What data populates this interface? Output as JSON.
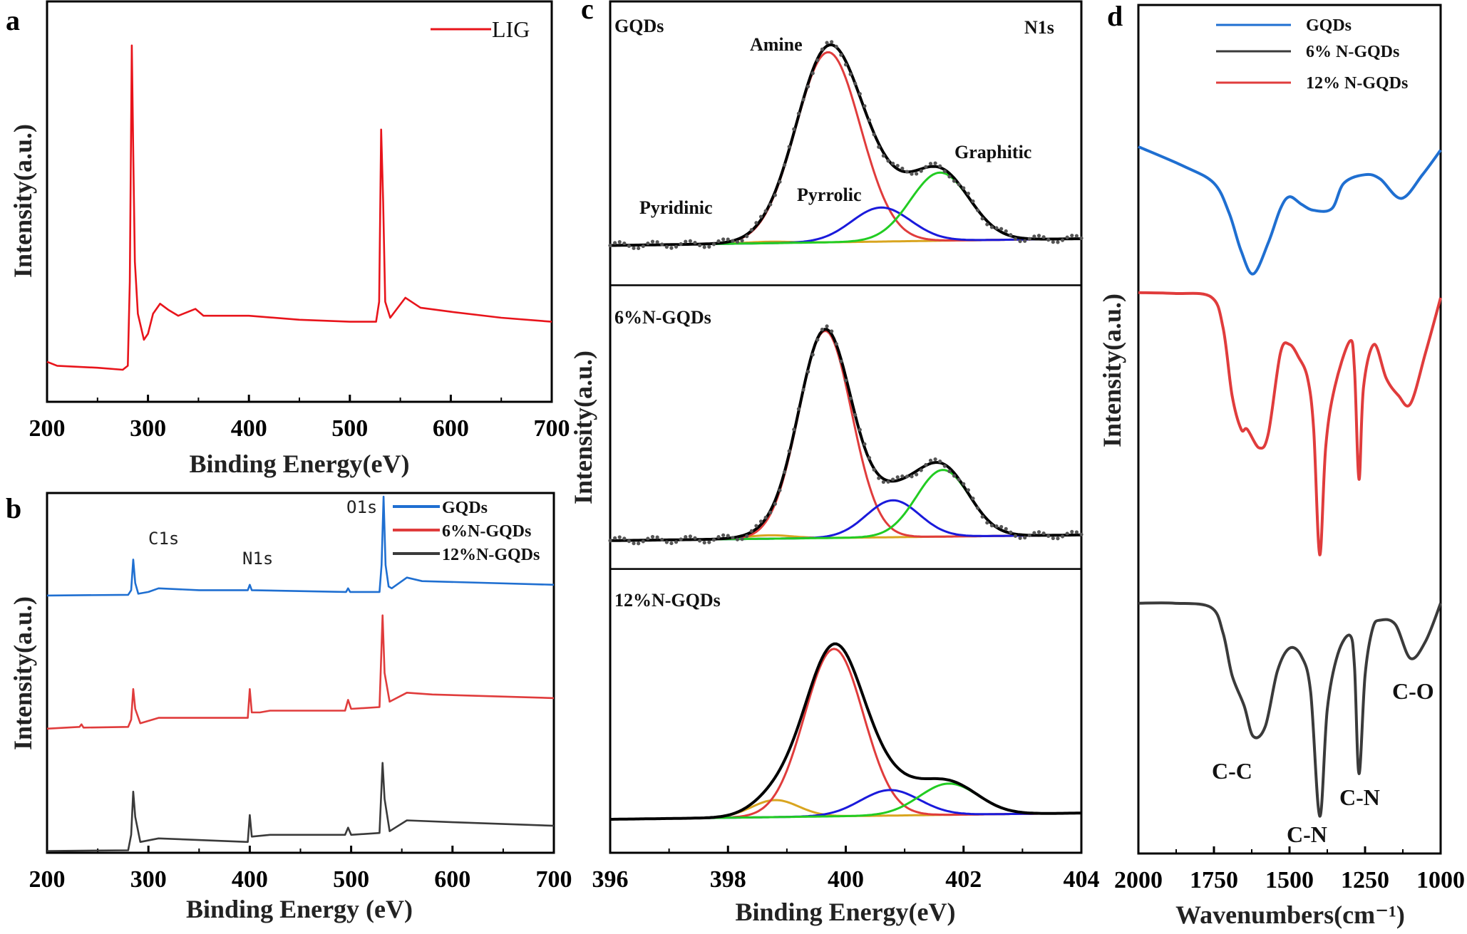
{
  "chart_data": [
    {
      "panel": "a",
      "type": "line",
      "xlabel": "Binding Energy(eV)",
      "ylabel": "Intensity(a.u.)",
      "xlim": [
        200,
        700
      ],
      "xticks": [
        200,
        300,
        400,
        500,
        600,
        700
      ],
      "legend_position": "top-right",
      "series": [
        {
          "name": "LIG",
          "color": "#e8141b",
          "points": [
            [
              200,
              0.1
            ],
            [
              210,
              0.09
            ],
            [
              250,
              0.085
            ],
            [
              275,
              0.08
            ],
            [
              280,
              0.09
            ],
            [
              282,
              0.3
            ],
            [
              284,
              0.89
            ],
            [
              285.5,
              0.6
            ],
            [
              287,
              0.35
            ],
            [
              290,
              0.22
            ],
            [
              296,
              0.155
            ],
            [
              300,
              0.17
            ],
            [
              305,
              0.22
            ],
            [
              312,
              0.245
            ],
            [
              320,
              0.23
            ],
            [
              330,
              0.215
            ],
            [
              347,
              0.232
            ],
            [
              355,
              0.215
            ],
            [
              400,
              0.215
            ],
            [
              450,
              0.205
            ],
            [
              500,
              0.2
            ],
            [
              526,
              0.2
            ],
            [
              529,
              0.25
            ],
            [
              531,
              0.68
            ],
            [
              533,
              0.5
            ],
            [
              535,
              0.25
            ],
            [
              540,
              0.21
            ],
            [
              555,
              0.26
            ],
            [
              570,
              0.235
            ],
            [
              600,
              0.225
            ],
            [
              650,
              0.21
            ],
            [
              700,
              0.2
            ]
          ]
        }
      ]
    },
    {
      "panel": "b",
      "type": "line",
      "xlabel": "Binding Energy (eV)",
      "ylabel": "Intensity(a.u.)",
      "xlim": [
        200,
        700
      ],
      "xticks": [
        200,
        300,
        400,
        500,
        600,
        700
      ],
      "legend_position": "top-right",
      "annotations": [
        {
          "text": "C1s",
          "x": 285
        },
        {
          "text": "N1s",
          "x": 400
        },
        {
          "text": "O1s",
          "x": 531
        }
      ],
      "series": [
        {
          "name": "GQDs",
          "color": "#1f6fd1",
          "points": [
            [
              200,
              0.715
            ],
            [
              280,
              0.717
            ],
            [
              283,
              0.73
            ],
            [
              285,
              0.815
            ],
            [
              287,
              0.75
            ],
            [
              290,
              0.72
            ],
            [
              300,
              0.725
            ],
            [
              310,
              0.735
            ],
            [
              350,
              0.73
            ],
            [
              398,
              0.73
            ],
            [
              400,
              0.745
            ],
            [
              402,
              0.73
            ],
            [
              495,
              0.725
            ],
            [
              497,
              0.735
            ],
            [
              499,
              0.725
            ],
            [
              528,
              0.725
            ],
            [
              530,
              0.8
            ],
            [
              532,
              0.99
            ],
            [
              534,
              0.8
            ],
            [
              537,
              0.74
            ],
            [
              540,
              0.735
            ],
            [
              555,
              0.765
            ],
            [
              570,
              0.755
            ],
            [
              700,
              0.745
            ]
          ]
        },
        {
          "name": "6%N-GQDs",
          "color": "#e03c3c",
          "points": [
            [
              200,
              0.345
            ],
            [
              232,
              0.35
            ],
            [
              234,
              0.357
            ],
            [
              236,
              0.348
            ],
            [
              280,
              0.35
            ],
            [
              283,
              0.37
            ],
            [
              285,
              0.455
            ],
            [
              287,
              0.4
            ],
            [
              292,
              0.36
            ],
            [
              310,
              0.375
            ],
            [
              398,
              0.375
            ],
            [
              400,
              0.455
            ],
            [
              402,
              0.39
            ],
            [
              410,
              0.39
            ],
            [
              420,
              0.395
            ],
            [
              494,
              0.395
            ],
            [
              497,
              0.425
            ],
            [
              500,
              0.4
            ],
            [
              528,
              0.405
            ],
            [
              531,
              0.66
            ],
            [
              533,
              0.5
            ],
            [
              538,
              0.42
            ],
            [
              555,
              0.445
            ],
            [
              580,
              0.44
            ],
            [
              700,
              0.43
            ]
          ]
        },
        {
          "name": "12%N-GQDs",
          "color": "#3a3a3a",
          "points": [
            [
              200,
              0.005
            ],
            [
              280,
              0.007
            ],
            [
              283,
              0.05
            ],
            [
              285,
              0.17
            ],
            [
              287,
              0.1
            ],
            [
              292,
              0.03
            ],
            [
              310,
              0.04
            ],
            [
              398,
              0.03
            ],
            [
              400,
              0.105
            ],
            [
              402,
              0.045
            ],
            [
              420,
              0.05
            ],
            [
              494,
              0.05
            ],
            [
              497,
              0.07
            ],
            [
              500,
              0.05
            ],
            [
              528,
              0.055
            ],
            [
              531,
              0.25
            ],
            [
              533,
              0.15
            ],
            [
              538,
              0.06
            ],
            [
              555,
              0.09
            ],
            [
              600,
              0.085
            ],
            [
              700,
              0.075
            ]
          ]
        }
      ]
    },
    {
      "panel": "c",
      "type": "line",
      "xlabel": "Binding Energy(eV)",
      "ylabel": "Intensity(a.u.)",
      "xlim": [
        396,
        404
      ],
      "xticks": [
        396,
        398,
        400,
        402,
        404
      ],
      "corner_label": "N1s",
      "component_colors": {
        "Pyridinic": "#d9a520",
        "Amine": "#e03c3c",
        "Pyrrolic": "#1a1adb",
        "Graphitic": "#22cc22",
        "envelope": "#000000",
        "data": "#555555"
      },
      "subplots": [
        {
          "title": "GQDs",
          "baseline": [
            0.14,
            0.164
          ],
          "show_data_points": true,
          "components": [
            {
              "name": "Pyridinic",
              "center": 398.7,
              "amplitude": 0.005,
              "sigma": 0.4,
              "label": "Pyridinic"
            },
            {
              "name": "Amine",
              "center": 399.7,
              "amplitude": 0.67,
              "sigma": 0.55,
              "label": "Amine"
            },
            {
              "name": "Pyrrolic",
              "center": 400.6,
              "amplitude": 0.12,
              "sigma": 0.5,
              "label": "Pyrrolic"
            },
            {
              "name": "Graphitic",
              "center": 401.6,
              "amplitude": 0.24,
              "sigma": 0.5,
              "label": "Graphitic"
            }
          ]
        },
        {
          "title": "6%N-GQDs",
          "baseline": [
            0.1,
            0.12
          ],
          "show_data_points": true,
          "components": [
            {
              "name": "Pyridinic",
              "center": 398.7,
              "amplitude": 0.012,
              "sigma": 0.4
            },
            {
              "name": "Amine",
              "center": 399.65,
              "amplitude": 0.73,
              "sigma": 0.45
            },
            {
              "name": "Pyrrolic",
              "center": 400.8,
              "amplitude": 0.13,
              "sigma": 0.45
            },
            {
              "name": "Graphitic",
              "center": 401.65,
              "amplitude": 0.235,
              "sigma": 0.45
            }
          ]
        },
        {
          "title": "12%N-GQDs",
          "baseline": [
            0.118,
            0.14
          ],
          "show_data_points": false,
          "components": [
            {
              "name": "Pyridinic",
              "center": 398.8,
              "amplitude": 0.06,
              "sigma": 0.4
            },
            {
              "name": "Amine",
              "center": 399.8,
              "amplitude": 0.59,
              "sigma": 0.5
            },
            {
              "name": "Pyrrolic",
              "center": 400.75,
              "amplitude": 0.09,
              "sigma": 0.5
            },
            {
              "name": "Graphitic",
              "center": 401.75,
              "amplitude": 0.11,
              "sigma": 0.5
            }
          ]
        }
      ]
    },
    {
      "panel": "d",
      "type": "line",
      "xlabel": "Wavenumbers(cm⁻¹)",
      "ylabel": "Intensity(a.u.)",
      "xlim": [
        2000,
        1000
      ],
      "xticks": [
        2000,
        1750,
        1500,
        1250,
        1000
      ],
      "legend_position": "top-right",
      "annotations": [
        {
          "text": "C-C",
          "x": 1620
        },
        {
          "text": "C-N",
          "x": 1400
        },
        {
          "text": "C-N",
          "x": 1270
        },
        {
          "text": "C-O",
          "x": 1100
        }
      ],
      "series": [
        {
          "name": "GQDs",
          "color": "#1f6fd1",
          "points": [
            [
              2000,
              0.833
            ],
            [
              1850,
              0.81
            ],
            [
              1750,
              0.79
            ],
            [
              1700,
              0.755
            ],
            [
              1660,
              0.71
            ],
            [
              1620,
              0.683
            ],
            [
              1570,
              0.72
            ],
            [
              1530,
              0.76
            ],
            [
              1500,
              0.774
            ],
            [
              1460,
              0.765
            ],
            [
              1420,
              0.758
            ],
            [
              1360,
              0.76
            ],
            [
              1320,
              0.79
            ],
            [
              1250,
              0.8
            ],
            [
              1200,
              0.795
            ],
            [
              1130,
              0.772
            ],
            [
              1060,
              0.8
            ],
            [
              1000,
              0.829
            ]
          ]
        },
        {
          "name": "6% N-GQDs",
          "color": "#3a3a3a",
          "points": [
            [
              2000,
              0.295
            ],
            [
              1880,
              0.295
            ],
            [
              1760,
              0.29
            ],
            [
              1720,
              0.26
            ],
            [
              1690,
              0.21
            ],
            [
              1650,
              0.174
            ],
            [
              1620,
              0.138
            ],
            [
              1580,
              0.15
            ],
            [
              1540,
              0.215
            ],
            [
              1500,
              0.242
            ],
            [
              1460,
              0.232
            ],
            [
              1430,
              0.19
            ],
            [
              1400,
              0.044
            ],
            [
              1375,
              0.17
            ],
            [
              1340,
              0.235
            ],
            [
              1300,
              0.257
            ],
            [
              1285,
              0.22
            ],
            [
              1270,
              0.094
            ],
            [
              1250,
              0.21
            ],
            [
              1225,
              0.265
            ],
            [
              1200,
              0.275
            ],
            [
              1150,
              0.27
            ],
            [
              1100,
              0.23
            ],
            [
              1050,
              0.25
            ],
            [
              1000,
              0.295
            ]
          ]
        },
        {
          "name": "12% N-GQDs",
          "color": "#e03c3c",
          "points": [
            [
              2000,
              0.661
            ],
            [
              1880,
              0.66
            ],
            [
              1760,
              0.656
            ],
            [
              1720,
              0.62
            ],
            [
              1690,
              0.54
            ],
            [
              1660,
              0.5
            ],
            [
              1640,
              0.5
            ],
            [
              1600,
              0.478
            ],
            [
              1570,
              0.495
            ],
            [
              1530,
              0.59
            ],
            [
              1500,
              0.6
            ],
            [
              1470,
              0.585
            ],
            [
              1440,
              0.56
            ],
            [
              1420,
              0.5
            ],
            [
              1400,
              0.352
            ],
            [
              1380,
              0.48
            ],
            [
              1350,
              0.55
            ],
            [
              1300,
              0.604
            ],
            [
              1285,
              0.57
            ],
            [
              1270,
              0.441
            ],
            [
              1255,
              0.55
            ],
            [
              1220,
              0.6
            ],
            [
              1180,
              0.56
            ],
            [
              1140,
              0.54
            ],
            [
              1100,
              0.53
            ],
            [
              1050,
              0.59
            ],
            [
              1000,
              0.655
            ]
          ]
        }
      ]
    }
  ],
  "panel_letters": [
    "a",
    "b",
    "c",
    "d"
  ],
  "panels": {
    "a": {
      "xlabel": "Binding Energy(eV)",
      "ylabel": "Intensity(a.u.)",
      "legend": [
        "LIG"
      ]
    },
    "b": {
      "xlabel": "Binding Energy (eV)",
      "ylabel": "Intensity(a.u.)",
      "legend": [
        "GQDs",
        "6%N-GQDs",
        "12%N-GQDs"
      ],
      "annotations": [
        "C1s",
        "N1s",
        "O1s"
      ]
    },
    "c": {
      "xlabel": "Binding Energy(eV)",
      "ylabel": "Intensity(a.u.)",
      "corner_label": "N1s",
      "titles": [
        "GQDs",
        "6%N-GQDs",
        "12%N-GQDs"
      ],
      "labels": [
        "Amine",
        "Pyridinic",
        "Pyrrolic",
        "Graphitic"
      ]
    },
    "d": {
      "xlabel": "Wavenumbers(cm⁻¹)",
      "ylabel": "Intensity(a.u.)",
      "legend": [
        "GQDs",
        "6% N-GQDs",
        "12% N-GQDs"
      ],
      "annotations": [
        "C-C",
        "C-N",
        "C-N",
        "C-O"
      ]
    }
  }
}
